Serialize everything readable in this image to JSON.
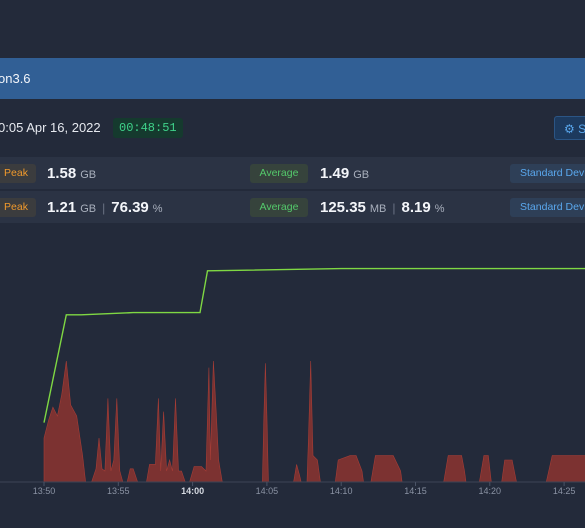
{
  "header": {
    "title_fragment": "on3.6"
  },
  "info": {
    "datetime": "0:05 Apr 16, 2022",
    "duration": "00:48:51",
    "settings_label": "S"
  },
  "stats": {
    "row1": {
      "peak_label": "Peak",
      "peak_value": "1.58",
      "peak_unit": "GB",
      "avg_label": "Average",
      "avg_value": "1.49",
      "avg_unit": "GB",
      "std_label": "Standard Devi"
    },
    "row2": {
      "peak_label": "Peak",
      "peak_value": "1.21",
      "peak_unit": "GB",
      "peak_pct": "76.39",
      "pct_unit": "%",
      "avg_label": "Average",
      "avg_value": "125.35",
      "avg_unit": "MB",
      "avg_pct": "8.19",
      "std_label": "Standard Devi"
    }
  },
  "colors": {
    "titlebar": "#315f95",
    "peak": "#f19a2c",
    "average": "#54c96b",
    "stddev": "#5aa8ee",
    "line": "#7fd843",
    "area": "#8c3430"
  },
  "chart_data": {
    "type": "line",
    "x_ticks": [
      "13:50",
      "13:55",
      "14:00",
      "14:05",
      "14:10",
      "14:15",
      "14:20",
      "14:25"
    ],
    "x_bold": "14:00",
    "x_minutes": [
      0,
      5,
      10,
      15,
      20,
      25,
      30,
      35
    ],
    "series": [
      {
        "kind": "line",
        "points": [
          [
            0.0,
            0.27
          ],
          [
            1.5,
            0.76
          ],
          [
            2.5,
            0.76
          ],
          [
            6.0,
            0.77
          ],
          [
            10.5,
            0.77
          ],
          [
            11.0,
            0.96
          ],
          [
            20.0,
            0.97
          ],
          [
            37.0,
            0.97
          ]
        ]
      },
      {
        "kind": "area",
        "points": [
          [
            0.0,
            0.2
          ],
          [
            0.3,
            0.28
          ],
          [
            0.6,
            0.34
          ],
          [
            0.9,
            0.3
          ],
          [
            1.2,
            0.4
          ],
          [
            1.5,
            0.55
          ],
          [
            1.8,
            0.35
          ],
          [
            2.2,
            0.3
          ],
          [
            2.6,
            0.12
          ],
          [
            2.8,
            0.0
          ],
          [
            3.2,
            0.0
          ],
          [
            3.5,
            0.06
          ],
          [
            3.7,
            0.2
          ],
          [
            3.9,
            0.06
          ],
          [
            4.1,
            0.05
          ],
          [
            4.3,
            0.38
          ],
          [
            4.5,
            0.05
          ],
          [
            4.7,
            0.1
          ],
          [
            4.9,
            0.38
          ],
          [
            5.1,
            0.05
          ],
          [
            5.3,
            0.0
          ],
          [
            5.6,
            0.0
          ],
          [
            5.8,
            0.06
          ],
          [
            6.0,
            0.06
          ],
          [
            6.3,
            0.0
          ],
          [
            6.9,
            0.0
          ],
          [
            7.1,
            0.08
          ],
          [
            7.3,
            0.08
          ],
          [
            7.5,
            0.08
          ],
          [
            7.7,
            0.38
          ],
          [
            7.85,
            0.05
          ],
          [
            8.05,
            0.32
          ],
          [
            8.25,
            0.05
          ],
          [
            8.45,
            0.1
          ],
          [
            8.65,
            0.05
          ],
          [
            8.85,
            0.38
          ],
          [
            9.05,
            0.05
          ],
          [
            9.25,
            0.05
          ],
          [
            9.5,
            0.0
          ],
          [
            9.8,
            0.0
          ],
          [
            10.1,
            0.07
          ],
          [
            10.6,
            0.07
          ],
          [
            10.9,
            0.05
          ],
          [
            11.1,
            0.52
          ],
          [
            11.2,
            0.1
          ],
          [
            11.4,
            0.55
          ],
          [
            11.6,
            0.3
          ],
          [
            11.75,
            0.1
          ],
          [
            12.0,
            0.0
          ],
          [
            14.7,
            0.0
          ],
          [
            14.8,
            0.3
          ],
          [
            14.9,
            0.54
          ],
          [
            15.0,
            0.3
          ],
          [
            15.1,
            0.0
          ],
          [
            16.8,
            0.0
          ],
          [
            17.0,
            0.08
          ],
          [
            17.2,
            0.03
          ],
          [
            17.3,
            0.0
          ],
          [
            17.7,
            0.0
          ],
          [
            17.8,
            0.2
          ],
          [
            17.95,
            0.55
          ],
          [
            18.1,
            0.12
          ],
          [
            18.4,
            0.1
          ],
          [
            18.6,
            0.0
          ],
          [
            19.6,
            0.0
          ],
          [
            19.8,
            0.1
          ],
          [
            20.6,
            0.12
          ],
          [
            21.0,
            0.12
          ],
          [
            21.4,
            0.05
          ],
          [
            21.5,
            0.0
          ],
          [
            22.0,
            0.0
          ],
          [
            22.3,
            0.12
          ],
          [
            23.5,
            0.12
          ],
          [
            24.0,
            0.05
          ],
          [
            24.1,
            0.0
          ],
          [
            26.9,
            0.0
          ],
          [
            27.2,
            0.12
          ],
          [
            28.1,
            0.12
          ],
          [
            28.3,
            0.05
          ],
          [
            28.4,
            0.0
          ],
          [
            29.3,
            0.0
          ],
          [
            29.6,
            0.12
          ],
          [
            29.9,
            0.12
          ],
          [
            30.1,
            0.0
          ],
          [
            30.8,
            0.0
          ],
          [
            31.0,
            0.1
          ],
          [
            31.5,
            0.1
          ],
          [
            31.8,
            0.0
          ],
          [
            33.8,
            0.0
          ],
          [
            34.2,
            0.12
          ],
          [
            37.0,
            0.12
          ]
        ]
      }
    ]
  }
}
